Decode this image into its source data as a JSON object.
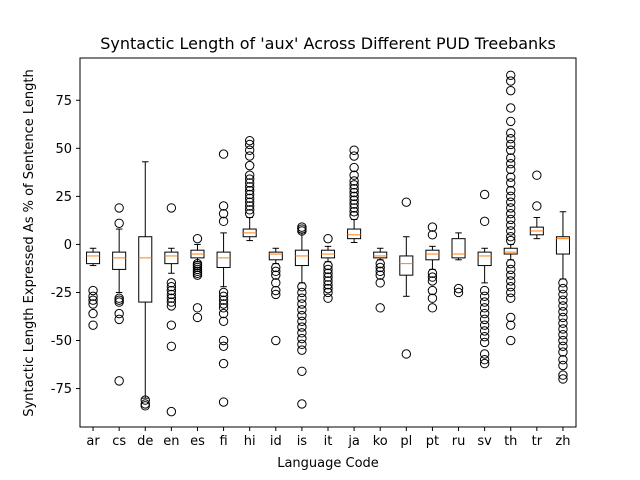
{
  "chart_data": {
    "type": "box",
    "title": "Syntactic Length of 'aux' Across Different PUD Treebanks",
    "xlabel": "Language Code",
    "ylabel": "Syntactic Length Expressed As % of Sentence Length",
    "ylim": [
      -95,
      97
    ],
    "yticks": [
      -75,
      -50,
      -25,
      0,
      25,
      50,
      75
    ],
    "grid": false,
    "legend": "none",
    "colors": {
      "box": "#000000",
      "median": "#ff7f0e",
      "flier": "#000000"
    },
    "series": [
      {
        "category": "ar",
        "whisker_low": -11,
        "q1": -10,
        "median": -6,
        "q3": -4,
        "whisker_high": -2,
        "fliers": [
          -24,
          -27,
          -29,
          -31,
          -36,
          -42
        ]
      },
      {
        "category": "cs",
        "whisker_low": -25,
        "q1": -13,
        "median": -7,
        "q3": -4,
        "whisker_high": 8,
        "fliers": [
          19,
          11,
          -28,
          -29,
          -30,
          -36,
          -39,
          -71
        ]
      },
      {
        "category": "de",
        "whisker_low": -80,
        "q1": -30,
        "median": -7,
        "q3": 4,
        "whisker_high": 43,
        "fliers": [
          -81,
          -83,
          -84
        ]
      },
      {
        "category": "en",
        "whisker_low": -15,
        "q1": -10,
        "median": -6,
        "q3": -4,
        "whisker_high": -2,
        "fliers": [
          19,
          -20,
          -22,
          -24,
          -26,
          -28,
          -30,
          -32,
          -42,
          -53,
          -87
        ]
      },
      {
        "category": "es",
        "whisker_low": -9,
        "q1": -7,
        "median": -5,
        "q3": -3,
        "whisker_high": 0,
        "fliers": [
          3,
          -10,
          -11,
          -12,
          -13,
          -14,
          -15,
          -16,
          -33,
          -38
        ]
      },
      {
        "category": "fi",
        "whisker_low": -22,
        "q1": -12,
        "median": -7,
        "q3": -4,
        "whisker_high": 6,
        "fliers": [
          47,
          20,
          16,
          12,
          -25,
          -27,
          -29,
          -31,
          -33,
          -36,
          -40,
          -50,
          -53,
          -62,
          -82
        ]
      },
      {
        "category": "hi",
        "whisker_low": 2,
        "q1": 4,
        "median": 6,
        "q3": 8,
        "whisker_high": 14,
        "fliers": [
          16,
          18,
          20,
          22,
          24,
          26,
          28,
          30,
          32,
          34,
          36,
          41,
          46,
          49,
          52,
          54
        ]
      },
      {
        "category": "id",
        "whisker_low": -10,
        "q1": -8,
        "median": -5,
        "q3": -4,
        "whisker_high": -2,
        "fliers": [
          -12,
          -14,
          -16,
          -20,
          -24,
          -26,
          -50
        ]
      },
      {
        "category": "is",
        "whisker_low": -20,
        "q1": -11,
        "median": -6,
        "q3": -3,
        "whisker_high": 6,
        "fliers": [
          9,
          8,
          7,
          -22,
          -25,
          -28,
          -31,
          -34,
          -37,
          -40,
          -43,
          -46,
          -49,
          -52,
          -55,
          -66,
          -83
        ]
      },
      {
        "category": "it",
        "whisker_low": -9,
        "q1": -7,
        "median": -5,
        "q3": -3,
        "whisker_high": -1,
        "fliers": [
          3,
          -11,
          -13,
          -15,
          -17,
          -19,
          -21,
          -23,
          -25,
          -28
        ]
      },
      {
        "category": "ja",
        "whisker_low": 1,
        "q1": 3,
        "median": 5,
        "q3": 8,
        "whisker_high": 13,
        "fliers": [
          15,
          17,
          19,
          21,
          23,
          25,
          27,
          29,
          31,
          33,
          36,
          40,
          46,
          49
        ]
      },
      {
        "category": "ko",
        "whisker_low": -8,
        "q1": -7,
        "median": -6,
        "q3": -4,
        "whisker_high": -2,
        "fliers": [
          -10,
          -12,
          -14,
          -16,
          -20,
          -33
        ]
      },
      {
        "category": "pl",
        "whisker_low": -27,
        "q1": -16,
        "median": -10,
        "q3": -6,
        "whisker_high": 4,
        "fliers": [
          22,
          -57
        ]
      },
      {
        "category": "pt",
        "whisker_low": -13,
        "q1": -8,
        "median": -5,
        "q3": -3,
        "whisker_high": -1,
        "fliers": [
          9,
          5,
          -15,
          -17,
          -19,
          -24,
          -28,
          -33
        ]
      },
      {
        "category": "ru",
        "whisker_low": -8,
        "q1": -7,
        "median": -5,
        "q3": 3,
        "whisker_high": 6,
        "fliers": [
          -23,
          -25
        ]
      },
      {
        "category": "sv",
        "whisker_low": -20,
        "q1": -11,
        "median": -6,
        "q3": -4,
        "whisker_high": -2,
        "fliers": [
          26,
          12,
          -24,
          -27,
          -30,
          -33,
          -36,
          -39,
          -42,
          -45,
          -48,
          -51,
          -57,
          -60,
          -62
        ]
      },
      {
        "category": "th",
        "whisker_low": -8,
        "q1": -5,
        "median": -4,
        "q3": -2,
        "whisker_high": 0,
        "fliers": [
          88,
          85,
          80,
          71,
          64,
          58,
          55,
          52,
          49,
          45,
          42,
          39,
          35,
          32,
          28,
          25,
          22,
          19,
          16,
          13,
          10,
          7,
          4,
          2,
          -10,
          -13,
          -16,
          -19,
          -22,
          -25,
          -28,
          -38,
          -42,
          -50
        ]
      },
      {
        "category": "tr",
        "whisker_low": 3,
        "q1": 5,
        "median": 7,
        "q3": 9,
        "whisker_high": 14,
        "fliers": [
          36,
          20
        ]
      },
      {
        "category": "zh",
        "whisker_low": -18,
        "q1": -5,
        "median": 3,
        "q3": 4,
        "whisker_high": 17,
        "fliers": [
          -20,
          -23,
          -26,
          -29,
          -32,
          -35,
          -38,
          -41,
          -44,
          -47,
          -50,
          -53,
          -56,
          -60,
          -63,
          -68,
          -70
        ]
      }
    ]
  }
}
